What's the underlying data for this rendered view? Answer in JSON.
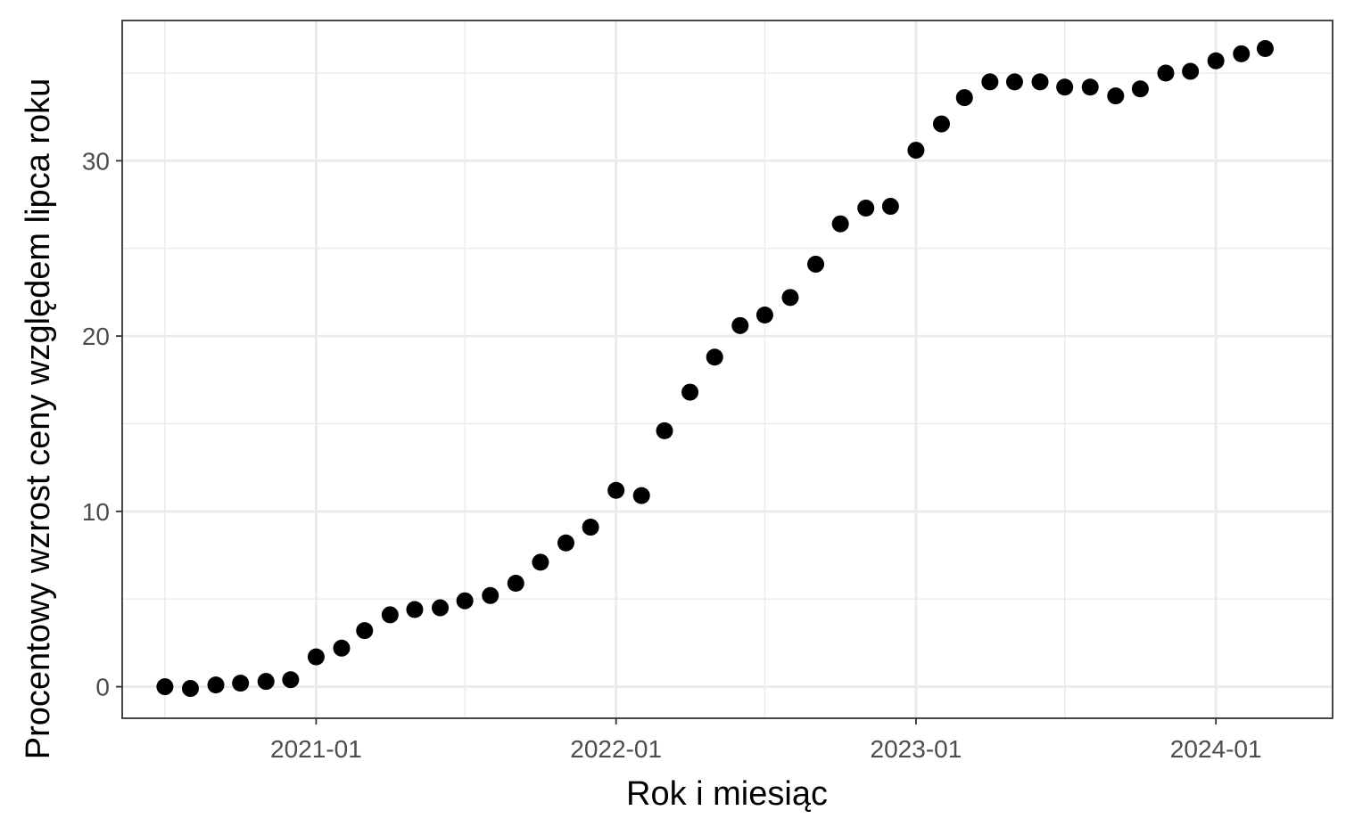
{
  "chart_data": {
    "type": "scatter",
    "title": "",
    "xlabel": "Rok i miesiąc",
    "ylabel": "Procentowy wzrost ceny względem lipca roku",
    "x_ticks": [
      "2021-01",
      "2022-01",
      "2023-01",
      "2024-01"
    ],
    "y_ticks": [
      0,
      10,
      20,
      30
    ],
    "xlim": [
      "2020-05-10",
      "2024-05-22"
    ],
    "ylim": [
      -1.8,
      38.0
    ],
    "grid": true,
    "point_color": "#000000",
    "series": [
      {
        "x": [
          "2020-07",
          "2020-08",
          "2020-09",
          "2020-10",
          "2020-11",
          "2020-12",
          "2021-01",
          "2021-02",
          "2021-03",
          "2021-04",
          "2021-05",
          "2021-06",
          "2021-07",
          "2021-08",
          "2021-09",
          "2021-10",
          "2021-11",
          "2021-12",
          "2022-01",
          "2022-02",
          "2022-03",
          "2022-04",
          "2022-05",
          "2022-06",
          "2022-07",
          "2022-08",
          "2022-09",
          "2022-10",
          "2022-11",
          "2022-12",
          "2023-01",
          "2023-02",
          "2023-03",
          "2023-04",
          "2023-05",
          "2023-06",
          "2023-07",
          "2023-08",
          "2023-09",
          "2023-10",
          "2023-11",
          "2023-12",
          "2024-01",
          "2024-02",
          "2024-03"
        ],
        "y": [
          0.0,
          -0.1,
          0.1,
          0.2,
          0.3,
          0.4,
          1.7,
          2.2,
          3.2,
          4.1,
          4.4,
          4.5,
          4.9,
          5.2,
          5.9,
          7.1,
          8.2,
          9.1,
          11.2,
          10.9,
          14.6,
          16.8,
          18.8,
          20.6,
          21.2,
          22.2,
          24.1,
          26.4,
          27.3,
          27.4,
          30.6,
          32.1,
          33.6,
          34.5,
          34.5,
          34.5,
          34.2,
          34.2,
          33.7,
          34.1,
          35.0,
          35.1,
          35.7,
          36.1,
          36.4
        ]
      }
    ]
  }
}
